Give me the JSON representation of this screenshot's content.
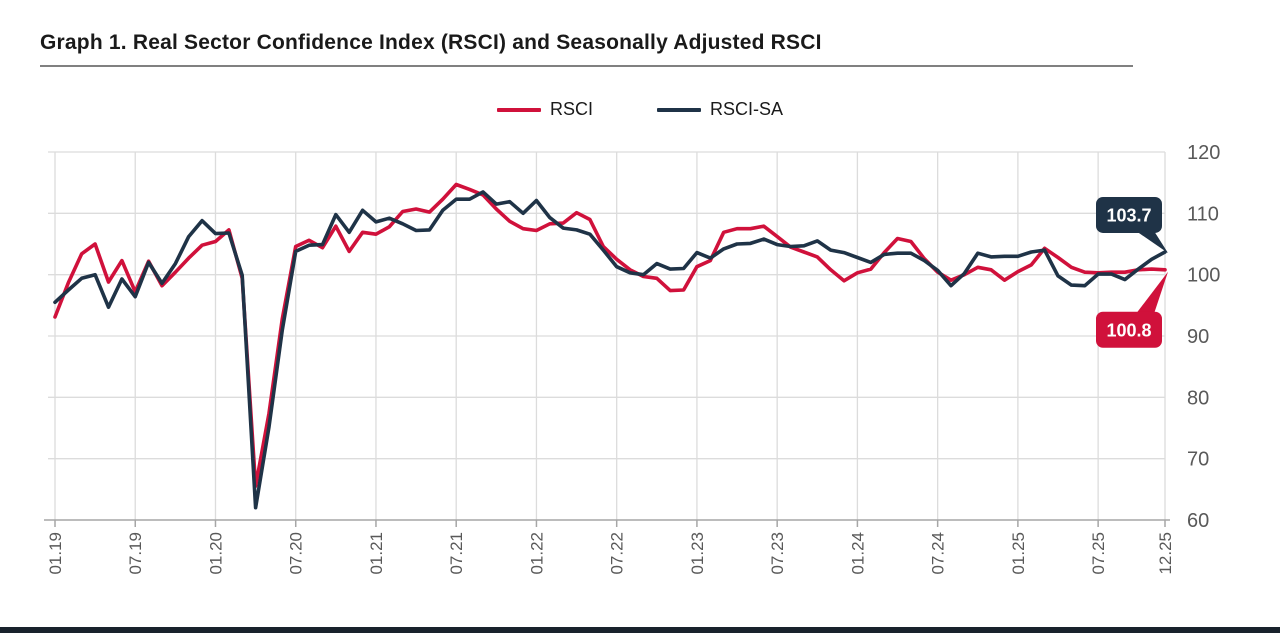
{
  "title": "Graph 1. Real Sector Confidence Index (RSCI) and Seasonally Adjusted RSCI",
  "legend": [
    {
      "label": "RSCI",
      "color": "#d0113b"
    },
    {
      "label": "RSCI-SA",
      "color": "#1f3347"
    }
  ],
  "footer_bar_color": "#18222c",
  "chart_data": {
    "type": "line",
    "title": "Graph 1. Real Sector Confidence Index (RSCI) and Seasonally Adjusted RSCI",
    "xlabel": "",
    "ylabel": "",
    "ylim": [
      60,
      120
    ],
    "yticks": [
      60,
      70,
      80,
      90,
      100,
      110,
      120
    ],
    "grid": true,
    "legend_position": "top-center",
    "categories": [
      "01.19",
      "02.19",
      "03.19",
      "04.19",
      "05.19",
      "06.19",
      "07.19",
      "08.19",
      "09.19",
      "10.19",
      "11.19",
      "12.19",
      "01.20",
      "02.20",
      "03.20",
      "04.20",
      "05.20",
      "06.20",
      "07.20",
      "08.20",
      "09.20",
      "10.20",
      "11.20",
      "12.20",
      "01.21",
      "02.21",
      "03.21",
      "04.21",
      "05.21",
      "06.21",
      "07.21",
      "08.21",
      "09.21",
      "10.21",
      "11.21",
      "12.21",
      "01.22",
      "02.22",
      "03.22",
      "04.22",
      "05.22",
      "06.22",
      "07.22",
      "08.22",
      "09.22",
      "10.22",
      "11.22",
      "12.22",
      "01.23",
      "02.23",
      "03.23",
      "04.23",
      "05.23",
      "06.23",
      "07.23",
      "08.23",
      "09.23",
      "10.23",
      "11.23",
      "12.23",
      "01.24",
      "02.24",
      "03.24",
      "04.24",
      "05.24",
      "06.24",
      "07.24",
      "08.24",
      "09.24",
      "10.24",
      "11.24",
      "12.24",
      "01.25",
      "02.25",
      "03.25",
      "04.25",
      "05.25",
      "06.25",
      "07.25",
      "08.25",
      "09.25",
      "10.25",
      "11.25",
      "12.25"
    ],
    "x_tick_indices": [
      0,
      6,
      12,
      18,
      24,
      30,
      36,
      42,
      48,
      54,
      60,
      66,
      72,
      78,
      83
    ],
    "x_tick_labels": [
      "01.19",
      "07.19",
      "01.20",
      "07.20",
      "01.21",
      "07.21",
      "01.22",
      "07.22",
      "01.23",
      "07.23",
      "01.24",
      "07.24",
      "01.25",
      "07.25",
      "12.25"
    ],
    "series": [
      {
        "name": "RSCI",
        "color": "#d0113b",
        "values": [
          93.1,
          98.7,
          103.4,
          105.0,
          98.8,
          102.3,
          97.2,
          102.2,
          98.2,
          100.4,
          102.7,
          104.8,
          105.4,
          107.3,
          99.4,
          65.5,
          77.4,
          92.8,
          104.6,
          105.6,
          104.4,
          107.9,
          103.8,
          106.9,
          106.6,
          107.8,
          110.3,
          110.7,
          110.2,
          112.3,
          114.7,
          113.9,
          113.0,
          110.7,
          108.7,
          107.5,
          107.2,
          108.3,
          108.4,
          110.1,
          109.0,
          104.6,
          102.5,
          100.8,
          99.7,
          99.4,
          97.4,
          97.5,
          101.3,
          102.3,
          106.9,
          107.5,
          107.5,
          107.9,
          106.2,
          104.5,
          103.7,
          102.9,
          100.8,
          99.0,
          100.3,
          100.9,
          103.6,
          105.9,
          105.4,
          102.6,
          100.4,
          99.1,
          100.0,
          101.2,
          100.8,
          99.1,
          100.5,
          101.6,
          104.3,
          102.8,
          101.2,
          100.4,
          100.3,
          100.4,
          100.4,
          100.8,
          100.9,
          100.8
        ]
      },
      {
        "name": "RSCI-SA",
        "color": "#1f3347",
        "values": [
          95.5,
          97.5,
          99.4,
          100.0,
          94.7,
          99.3,
          96.4,
          102.0,
          98.6,
          101.8,
          106.2,
          108.8,
          106.7,
          106.8,
          99.9,
          62.0,
          75.2,
          91.0,
          103.8,
          104.8,
          104.9,
          109.8,
          106.9,
          110.5,
          108.6,
          109.2,
          108.3,
          107.2,
          107.3,
          110.5,
          112.3,
          112.3,
          113.5,
          111.5,
          111.9,
          110.0,
          112.1,
          109.3,
          107.6,
          107.3,
          106.6,
          104.0,
          101.3,
          100.3,
          100.0,
          101.8,
          100.9,
          101.0,
          103.6,
          102.7,
          104.2,
          105.0,
          105.1,
          105.8,
          104.9,
          104.6,
          104.7,
          105.5,
          104.0,
          103.6,
          102.8,
          102.0,
          103.3,
          103.5,
          103.5,
          102.3,
          100.7,
          98.2,
          100.2,
          103.5,
          102.9,
          103.0,
          103.0,
          103.7,
          104.0,
          99.8,
          98.3,
          98.2,
          100.1,
          100.1,
          99.2,
          100.9,
          102.5,
          103.7
        ]
      }
    ],
    "callouts": [
      {
        "series": "RSCI-SA",
        "label": "103.7",
        "color": "#1f3347",
        "position": "above"
      },
      {
        "series": "RSCI",
        "label": "100.8",
        "color": "#d0113b",
        "position": "below"
      }
    ]
  }
}
